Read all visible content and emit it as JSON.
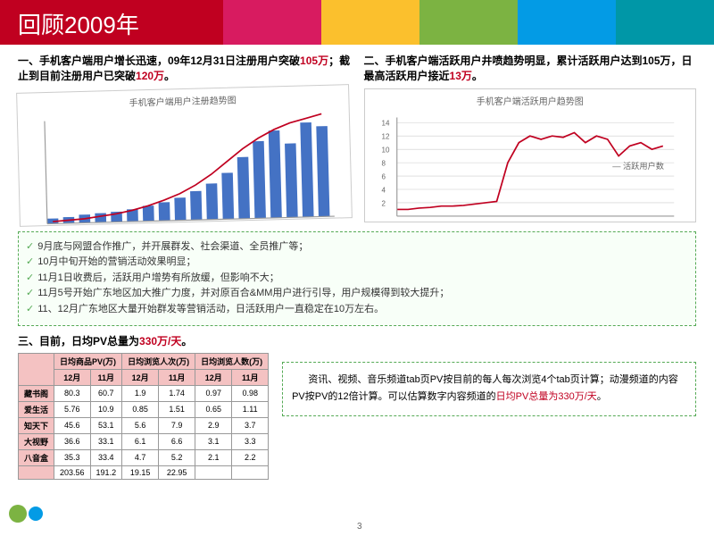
{
  "header": {
    "title": "回顾2009年",
    "block_colors": [
      "#d81b60",
      "#fbc02d",
      "#7cb342",
      "#039be5",
      "#0097a7"
    ]
  },
  "section1": {
    "title_pre": "一、手机客户端用户增长迅速，09年12月31日注册用户突破",
    "hl1": "105万",
    "mid": "；截止到目前注册用户已突破",
    "hl2": "120万",
    "suffix": "。",
    "chart_title": "手机客户端用户注册趋势图",
    "chart": {
      "bar_color": "#4472c4",
      "line_color": "#c00020",
      "bars": [
        5,
        6,
        8,
        9,
        10,
        12,
        15,
        18,
        22,
        28,
        35,
        45,
        60,
        75,
        85,
        72,
        92,
        88
      ],
      "line": [
        2,
        3,
        4,
        6,
        8,
        11,
        15,
        20,
        26,
        34,
        44,
        56,
        68,
        78,
        86,
        92,
        96,
        100
      ]
    }
  },
  "section2": {
    "title_pre": "二、手机客户端活跃用户井喷趋势明显，累计活跃用户达到105万，日最高活跃用户接近",
    "hl": "13万",
    "suffix": "。",
    "chart_title": "手机客户端活跃用户趋势图",
    "chart": {
      "line_color": "#c00020",
      "grid_color": "#ccc",
      "points": [
        1,
        1,
        1.2,
        1.3,
        1.5,
        1.5,
        1.6,
        1.8,
        2,
        2.2,
        8,
        11,
        12,
        11.5,
        12,
        11.8,
        12.5,
        11,
        12,
        11.5,
        9,
        10.5,
        11,
        10,
        10.5
      ]
    },
    "legend": "活跃用户数"
  },
  "bullets": [
    "9月底与网盟合作推广，并开展群发、社会渠道、全员推广等；",
    "10月中旬开始的营销活动效果明显；",
    "11月1日收费后，活跃用户增势有所放缓，但影响不大；",
    "11月5号开始广东地区加大推广力度，并对原百合&MM用户进行引导，用户规模得到较大提升；",
    "11、12月广东地区大量开始群发等营销活动，日活跃用户一直稳定在10万左右。"
  ],
  "section3": {
    "pre": "三、目前，日均PV总量为",
    "hl": "330万/天",
    "suffix": "。"
  },
  "table": {
    "head1": [
      "",
      "日均商品PV(万)",
      "日均浏览人次(万)",
      "日均浏览人数(万)"
    ],
    "head2": [
      "",
      "12月",
      "11月",
      "12月",
      "11月",
      "12月",
      "11月"
    ],
    "rows": [
      [
        "藏书阁",
        "80.3",
        "60.7",
        "1.9",
        "1.74",
        "0.97",
        "0.98"
      ],
      [
        "爱生活",
        "5.76",
        "10.9",
        "0.85",
        "1.51",
        "0.65",
        "1.11"
      ],
      [
        "知天下",
        "45.6",
        "53.1",
        "5.6",
        "7.9",
        "2.9",
        "3.7"
      ],
      [
        "大视野",
        "36.6",
        "33.1",
        "6.1",
        "6.6",
        "3.1",
        "3.3"
      ],
      [
        "八音盒",
        "35.3",
        "33.4",
        "4.7",
        "5.2",
        "2.1",
        "2.2"
      ],
      [
        "",
        "203.56",
        "191.2",
        "19.15",
        "22.95",
        "",
        ""
      ]
    ]
  },
  "note": {
    "text1": "资讯、视频、音乐频道tab页PV按目前的每人每次浏览4个tab页计算；动漫频道的内容PV按PV的12倍计算。可以估算数字内容频道的",
    "hl": "日均PV总量为330万/天",
    "suffix": "。"
  },
  "page": "3"
}
